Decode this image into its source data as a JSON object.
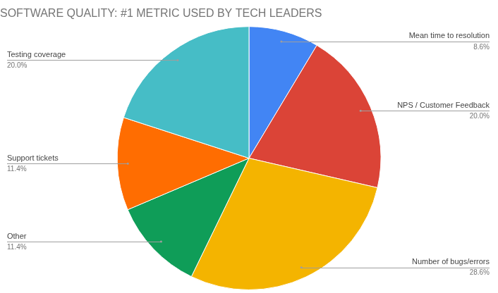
{
  "chart_data": {
    "type": "pie",
    "title": "SOFTWARE QUALITY: #1 METRIC USED BY TECH LEADERS",
    "categories": [
      "Mean time to resolution",
      "NPS / Customer Feedback",
      "Number of bugs/errors",
      "Other",
      "Support tickets",
      "Testing coverage"
    ],
    "values": [
      8.6,
      20.0,
      28.6,
      11.4,
      11.4,
      20.0
    ],
    "value_labels": [
      "8.6%",
      "20.0%",
      "28.6%",
      "11.4%",
      "11.4%",
      "20.0%"
    ],
    "colors": [
      "#4285f4",
      "#db4437",
      "#f4b400",
      "#0f9d58",
      "#ff6d01",
      "#46bdc6"
    ],
    "data_labels": true
  }
}
